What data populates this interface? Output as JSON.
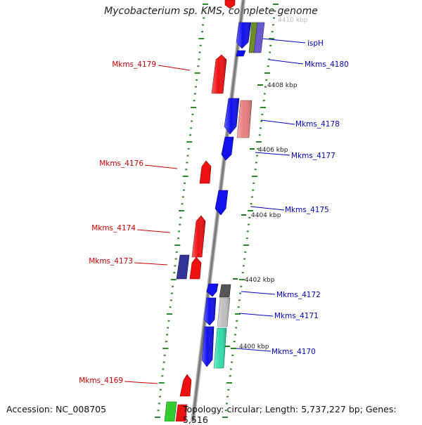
{
  "title": "Mycobacterium sp. KMS, complete genome",
  "accession_label": "Accession: NC_008705",
  "summary_label": "Topology: circular; Length: 5,737,227 bp; Genes: 5,516",
  "colors": {
    "backbone": "#888888",
    "tick_dot": "#2a8a2a",
    "left_label": "#cc0000",
    "right_label": "#0000cc"
  },
  "scale_labels": [
    "4410 kbp",
    "4408 kbp",
    "4406 kbp",
    "4404 kbp",
    "4402 kbp",
    "4400 kbp"
  ],
  "left_genes": [
    "Mkms_4179",
    "Mkms_4176",
    "Mkms_4174",
    "Mkms_4173",
    "Mkms_4169"
  ],
  "right_genes": [
    "ispH",
    "Mkms_4180",
    "Mkms_4178",
    "Mkms_4177",
    "Mkms_4175",
    "Mkms_4172",
    "Mkms_4171",
    "Mkms_4170"
  ],
  "feature_colors": {
    "red": "#ee1111",
    "blue": "#1111ee",
    "navy": "#333399",
    "olive": "#6b8e23",
    "purple": "#6a5acd",
    "pink": "#e88080",
    "darkgray": "#555555",
    "silver": "#c0c0c0",
    "mint": "#33ddaa",
    "green": "#33cc33"
  }
}
